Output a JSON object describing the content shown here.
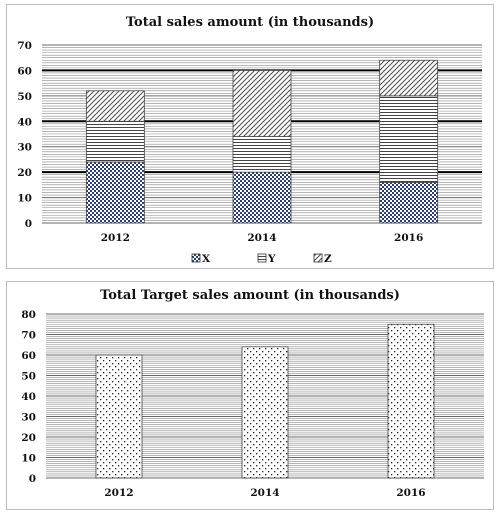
{
  "chart_data": [
    {
      "type": "bar",
      "stacked": true,
      "title": "Total sales amount (in thousands)",
      "xlabel": "",
      "ylabel": "",
      "categories": [
        "2012",
        "2014",
        "2016"
      ],
      "series": [
        {
          "name": "X",
          "values": [
            24,
            20,
            16
          ]
        },
        {
          "name": "Y",
          "values": [
            16,
            14,
            34
          ]
        },
        {
          "name": "Z",
          "values": [
            12,
            26,
            14
          ]
        }
      ],
      "ylim": [
        0,
        70
      ],
      "yticks": [
        0,
        10,
        20,
        30,
        40,
        50,
        60,
        70
      ],
      "grid": true,
      "legend": "bottom"
    },
    {
      "type": "bar",
      "title": "Total Target sales amount (in thousands)",
      "xlabel": "",
      "ylabel": "",
      "categories": [
        "2012",
        "2014",
        "2016"
      ],
      "values": [
        60,
        64,
        75
      ],
      "ylim": [
        0,
        80
      ],
      "yticks": [
        0,
        10,
        20,
        30,
        40,
        50,
        60,
        70,
        80
      ],
      "grid": true,
      "legend": "none"
    }
  ]
}
